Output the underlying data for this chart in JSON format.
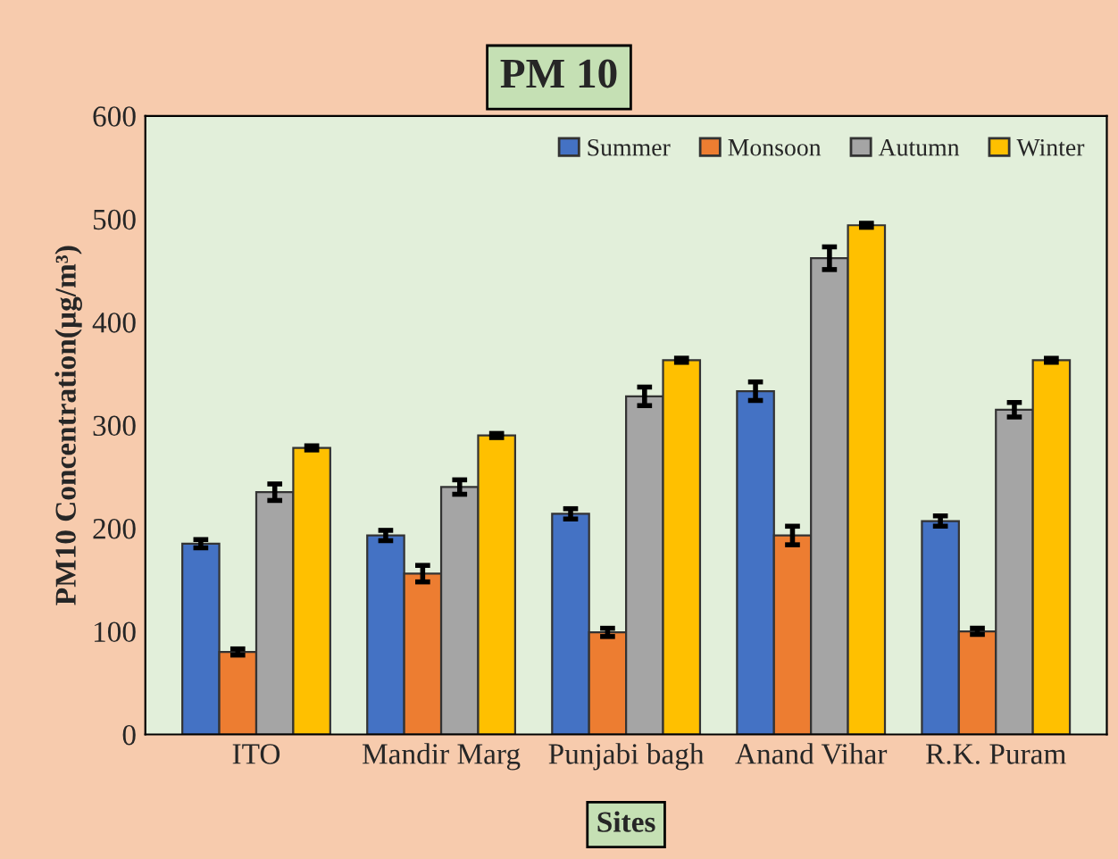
{
  "chart_data": {
    "type": "bar",
    "title": "PM 10",
    "xlabel": "Sites",
    "ylabel": "PM10 Concentration(µg/m³)",
    "categories": [
      "ITO",
      "Mandir Marg",
      "Punjabi bagh",
      "Anand Vihar",
      "R.K. Puram"
    ],
    "series": [
      {
        "name": "Summer",
        "color": "#4472c4",
        "values": [
          185,
          193,
          214,
          333,
          207
        ],
        "errors": [
          4,
          5,
          5,
          9,
          5
        ]
      },
      {
        "name": "Monsoon",
        "color": "#ed7d31",
        "values": [
          80,
          156,
          99,
          193,
          100
        ],
        "errors": [
          3,
          8,
          4,
          9,
          3
        ]
      },
      {
        "name": "Autumn",
        "color": "#a5a5a5",
        "values": [
          235,
          240,
          328,
          462,
          315
        ],
        "errors": [
          8,
          7,
          9,
          11,
          7
        ]
      },
      {
        "name": "Winter",
        "color": "#ffc000",
        "values": [
          278,
          290,
          363,
          494,
          363
        ],
        "errors": [
          2,
          2,
          2,
          2,
          2
        ]
      }
    ],
    "ylim": [
      0,
      600
    ],
    "yticks": [
      0,
      100,
      200,
      300,
      400,
      500,
      600
    ],
    "grid": false,
    "legend": "top right"
  }
}
